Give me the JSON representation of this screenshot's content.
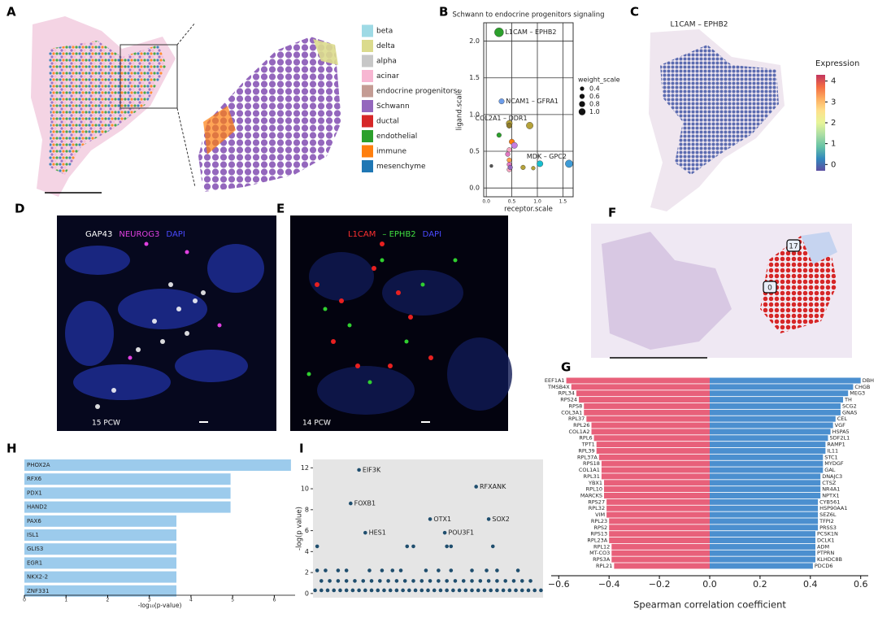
{
  "panel_letters": [
    "A",
    "B",
    "C",
    "D",
    "E",
    "F",
    "G",
    "H",
    "I"
  ],
  "panel_a": {
    "legend": [
      {
        "label": "beta",
        "color": "#9edae5"
      },
      {
        "label": "delta",
        "color": "#dbdb8d"
      },
      {
        "label": "alpha",
        "color": "#c7c7c7"
      },
      {
        "label": "acinar",
        "color": "#f7b6d2"
      },
      {
        "label": "endocrine progenitors",
        "color": "#c49c94"
      },
      {
        "label": "Schwann",
        "color": "#9467bd"
      },
      {
        "label": "ductal",
        "color": "#d62728"
      },
      {
        "label": "endothelial",
        "color": "#2ca02c"
      },
      {
        "label": "immune",
        "color": "#ff7f0e"
      },
      {
        "label": "mesenchyme",
        "color": "#1f77b4"
      }
    ]
  },
  "panel_c": {
    "title": "L1CAM – EPHB2",
    "colorbar_label": "Expression",
    "colorbar_lim": [
      -0.3,
      4.3
    ],
    "colorbar_ticks": [
      0,
      1,
      2,
      3,
      4
    ],
    "colormap": [
      "#5e4fa2",
      "#3288bd",
      "#66c2a5",
      "#abdda4",
      "#e6f598",
      "#fee08b",
      "#fdae61",
      "#f46d43",
      "#c2355f"
    ]
  },
  "panel_d": {
    "labels": [
      {
        "text": "GAP43",
        "color": "#ffffff"
      },
      {
        "text": "NEUROG3",
        "color": "#e040e0"
      },
      {
        "text": "DAPI",
        "color": "#4a4aff"
      }
    ],
    "stage": "15 PCW"
  },
  "panel_e": {
    "labels": [
      {
        "text": "L1CAM",
        "color": "#ff3030"
      },
      {
        "text": "– EPHB2",
        "color": "#40e040"
      },
      {
        "text": "DAPI",
        "color": "#4a4aff"
      }
    ],
    "stage": "14 PCW"
  },
  "panel_f": {
    "clusters": [
      "17",
      "0"
    ]
  },
  "chart_data": [
    {
      "type": "scatter",
      "title": "Schwann to endocrine progenitors signaling",
      "x_label": "receptor.scale",
      "y_label": "ligand.scale",
      "xlim": [
        -0.05,
        1.7
      ],
      "ylim": [
        -0.12,
        2.25
      ],
      "xticks": [
        {
          "value": 0,
          "label": "0.0"
        },
        {
          "value": 0.5,
          "label": "0.5"
        },
        {
          "value": 1,
          "label": "1.0"
        },
        {
          "value": 1.5,
          "label": "1.5"
        }
      ],
      "yticks": [
        {
          "value": 0,
          "label": "0.0"
        },
        {
          "value": 0.5,
          "label": "0.5"
        },
        {
          "value": 1,
          "label": "1.0"
        },
        {
          "value": 1.5,
          "label": "1.5"
        },
        {
          "value": 2,
          "label": "2.0"
        }
      ],
      "grid": true,
      "size_legend": {
        "title": "weight_scale",
        "values": [
          0.4,
          0.6,
          0.8,
          {
            "value": 1,
            "label": "1.0"
          }
        ]
      },
      "series": [
        {
          "x": [
            0.45,
            0.45,
            0.25,
            0.5,
            0.55,
            0.45,
            0.42,
            0.45,
            0.45,
            0.72,
            1.05,
            0.45,
            0.47,
            0.92,
            0.1
          ],
          "values": [
            0.88,
            0.85,
            0.72,
            0.63,
            0.58,
            0.52,
            0.46,
            0.38,
            0.32,
            0.28,
            0.33,
            0.25,
            0.28,
            0.27,
            0.3
          ],
          "sizes": [
            0.5,
            0.4,
            0.3,
            0.4,
            0.5,
            0.3,
            0.3,
            0.3,
            0.3,
            0.3,
            0.5,
            0.3,
            0.3,
            0.2,
            0.1
          ],
          "colors": [
            "#b5a23a",
            "#8c7a2a",
            "#2ca02c",
            "#ff7f0e",
            "#c77fe0",
            "#f7a6c2",
            "#e377c2",
            "#ff9f4e",
            "#e377c2",
            "#b5a23a",
            "#17becf",
            "#f7a6c2",
            "#9467bd",
            "#b5a23a",
            "#555555"
          ]
        },
        {
          "x": [
            0.25,
            0.3,
            0.85,
            1.62
          ],
          "values": [
            2.12,
            1.18,
            0.85,
            0.33
          ],
          "sizes": [
            0.9,
            0.4,
            0.6,
            0.7
          ],
          "colors": [
            "#2ca02c",
            "#6d9eeb",
            "#b5a23a",
            "#3e9bd6"
          ],
          "labels": [
            "L1CAM – EPHB2",
            "NCAM1 – GFRA1",
            "COL2A1 – DDR1",
            "MDK – GPC2"
          ]
        }
      ]
    },
    {
      "type": "diverging_bar",
      "x_label": "Spearman correlation coefficient",
      "xlim": [
        -0.63,
        0.63
      ],
      "xticks": [
        {
          "value": -0.6,
          "label": "−0.6"
        },
        {
          "value": -0.4,
          "label": "−0.4"
        },
        {
          "value": -0.2,
          "label": "−0.2"
        },
        {
          "value": 0,
          "label": "0.0"
        },
        0.2,
        0.4,
        0.6
      ],
      "series": [
        {
          "color": "#e8607a",
          "categories": [
            "EEF1A1",
            "TMSB4X",
            "RPL34",
            "RPS24",
            "RPS8",
            "COL3A1",
            "RPL37",
            "RPL26",
            "COL1A2",
            "RPL6",
            "TPT1",
            "RPL39",
            "RPL37A",
            "RPS18",
            "COL1A1",
            "RPL31",
            "YBX1",
            "RPL10",
            "MARCKS",
            "RPS27",
            "RPL32",
            "VIM",
            "RPL23",
            "RPS2",
            "RPS13",
            "RPL23A",
            "RPL12",
            "MT-CO3",
            "RPS3A",
            "RPL21"
          ],
          "values": [
            -0.57,
            -0.55,
            -0.53,
            -0.52,
            -0.5,
            -0.5,
            -0.49,
            -0.47,
            -0.47,
            -0.46,
            -0.45,
            -0.45,
            -0.44,
            -0.43,
            -0.43,
            -0.43,
            -0.42,
            -0.42,
            -0.42,
            -0.41,
            -0.41,
            -0.41,
            -0.4,
            -0.4,
            -0.4,
            -0.4,
            -0.39,
            -0.39,
            -0.39,
            -0.38
          ]
        },
        {
          "color": "#4b8fcf",
          "categories": [
            "DBH",
            "CHGB",
            "MEG3",
            "TH",
            "SCG2",
            "GNAS",
            "CEL",
            "VGF",
            "HSPA5",
            "SDF2L1",
            "RAMP1",
            "IL11",
            "STC1",
            "MYDGF",
            "GAL",
            "DNAJC3",
            "CTSZ",
            "NR4A1",
            "NPTX1",
            "CYB561",
            "HSP90AA1",
            "SEZ6L",
            "TFPI2",
            "PRSS3",
            "PCSK1N",
            "DCLK1",
            "ADM",
            "PTPRN",
            "KLHDC8B",
            "PDCD6"
          ],
          "values": [
            0.6,
            0.57,
            0.55,
            0.53,
            0.52,
            0.52,
            0.5,
            0.49,
            0.48,
            0.47,
            0.46,
            0.46,
            0.45,
            0.45,
            0.45,
            0.44,
            0.44,
            0.44,
            0.44,
            0.43,
            0.43,
            0.43,
            0.43,
            0.43,
            0.42,
            0.42,
            0.42,
            0.42,
            0.42,
            0.41
          ]
        }
      ]
    },
    {
      "type": "hbar",
      "x_label": "-log₁₀(p-value)",
      "color": "#9ccbec",
      "categories": [
        "PHOX2A",
        "RFX6",
        "PDX1",
        "HAND2",
        "PAX6",
        "ISL1",
        "GLIS3",
        "EGR1",
        "NKX2-2",
        "ZNF331"
      ],
      "values": [
        6.4,
        4.95,
        4.95,
        4.95,
        3.65,
        3.65,
        3.65,
        3.65,
        3.65,
        3.65
      ],
      "xlim": [
        0,
        6.5
      ],
      "xticks": [
        0,
        1,
        2,
        3,
        4,
        5,
        6
      ]
    },
    {
      "type": "scatter",
      "y_label": "-log(p value)",
      "color": "#1f4e6e",
      "xlim": [
        0,
        110
      ],
      "ylim": [
        -0.4,
        12.8
      ],
      "yticks": [
        0,
        2,
        4,
        6,
        8,
        10,
        12
      ],
      "series": [
        {
          "x": [
            2,
            45,
            48,
            64,
            66,
            86,
            2,
            6,
            12,
            16,
            27,
            33,
            38,
            42,
            54,
            60,
            66,
            76,
            83,
            88,
            98,
            4,
            8,
            12,
            16,
            20,
            24,
            28,
            32,
            36,
            40,
            44,
            48,
            52,
            56,
            60,
            64,
            68,
            72,
            76,
            80,
            84,
            88,
            92,
            96,
            100,
            104,
            1,
            4,
            7,
            10,
            13,
            16,
            19,
            22,
            25,
            28,
            31,
            34,
            37,
            40,
            43,
            46,
            49,
            52,
            55,
            58,
            61,
            64,
            67,
            70,
            73,
            76,
            79,
            82,
            85,
            88,
            91,
            94,
            97,
            100,
            103,
            106,
            109
          ],
          "values": [
            4.5,
            4.5,
            4.5,
            4.5,
            4.5,
            4.5,
            2.2,
            2.2,
            2.2,
            2.2,
            2.2,
            2.2,
            2.2,
            2.2,
            2.2,
            2.2,
            2.2,
            2.2,
            2.2,
            2.2,
            2.2,
            1.2,
            1.2,
            1.2,
            1.2,
            1.2,
            1.2,
            1.2,
            1.2,
            1.2,
            1.2,
            1.2,
            1.2,
            1.2,
            1.2,
            1.2,
            1.2,
            1.2,
            1.2,
            1.2,
            1.2,
            1.2,
            1.2,
            1.2,
            1.2,
            1.2,
            1.2,
            0.3,
            0.3,
            0.3,
            0.3,
            0.3,
            0.3,
            0.3,
            0.3,
            0.3,
            0.3,
            0.3,
            0.3,
            0.3,
            0.3,
            0.3,
            0.3,
            0.3,
            0.3,
            0.3,
            0.3,
            0.3,
            0.3,
            0.3,
            0.3,
            0.3,
            0.3,
            0.3,
            0.3,
            0.3,
            0.3,
            0.3,
            0.3,
            0.3,
            0.3,
            0.3,
            0.3,
            0.3
          ]
        },
        {
          "x": [
            22,
            18,
            25,
            78,
            56,
            84,
            63
          ],
          "values": [
            11.8,
            8.6,
            5.8,
            10.2,
            7.1,
            7.1,
            5.8
          ],
          "labels": [
            "EIF3K",
            "FOXB1",
            "HES1",
            "RFXANK",
            "OTX1",
            "SOX2",
            "POU3F1"
          ]
        }
      ]
    }
  ]
}
